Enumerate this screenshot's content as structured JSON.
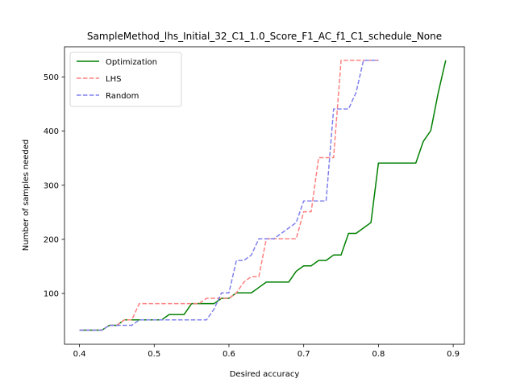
{
  "chart_data": {
    "type": "line",
    "title": "SampleMethod_lhs_Initial_32_C1_1.0_Score_F1_AC_f1_C1_schedule_None",
    "xlabel": "Desired accuracy",
    "ylabel": "Number of samples needed",
    "xlim": [
      0.38,
      0.915
    ],
    "ylim": [
      6,
      556
    ],
    "xticks": [
      0.4,
      0.5,
      0.6,
      0.7,
      0.8,
      0.9
    ],
    "xtick_labels": [
      "0.4",
      "0.5",
      "0.6",
      "0.7",
      "0.8",
      "0.9"
    ],
    "yticks": [
      100,
      200,
      300,
      400,
      500
    ],
    "ytick_labels": [
      "100",
      "200",
      "300",
      "400",
      "500"
    ],
    "grid": false,
    "legend": "top-left",
    "series": [
      {
        "name": "Optimization",
        "color": "#008000",
        "style": "solid",
        "x": [
          0.4,
          0.41,
          0.42,
          0.43,
          0.44,
          0.45,
          0.46,
          0.47,
          0.48,
          0.49,
          0.5,
          0.51,
          0.52,
          0.53,
          0.54,
          0.55,
          0.56,
          0.57,
          0.58,
          0.59,
          0.6,
          0.61,
          0.62,
          0.63,
          0.64,
          0.65,
          0.66,
          0.67,
          0.68,
          0.69,
          0.7,
          0.71,
          0.72,
          0.73,
          0.74,
          0.75,
          0.76,
          0.77,
          0.78,
          0.79,
          0.8,
          0.81,
          0.82,
          0.83,
          0.84,
          0.85,
          0.86,
          0.87,
          0.88,
          0.89
        ],
        "y": [
          32,
          32,
          32,
          32,
          41,
          41,
          51,
          51,
          51,
          51,
          51,
          51,
          61,
          61,
          61,
          81,
          81,
          81,
          81,
          91,
          91,
          101,
          101,
          101,
          111,
          121,
          121,
          121,
          121,
          141,
          151,
          151,
          161,
          161,
          171,
          171,
          211,
          211,
          221,
          231,
          341,
          341,
          341,
          341,
          341,
          341,
          381,
          401,
          471,
          531
        ]
      },
      {
        "name": "LHS",
        "color": "#ff8080",
        "style": "dashed",
        "x": [
          0.4,
          0.41,
          0.42,
          0.43,
          0.44,
          0.45,
          0.46,
          0.47,
          0.48,
          0.49,
          0.5,
          0.51,
          0.52,
          0.53,
          0.54,
          0.55,
          0.56,
          0.57,
          0.58,
          0.59,
          0.6,
          0.61,
          0.62,
          0.63,
          0.64,
          0.65,
          0.66,
          0.67,
          0.68,
          0.69,
          0.7,
          0.71,
          0.72,
          0.73,
          0.74,
          0.75,
          0.76,
          0.77,
          0.78,
          0.79,
          0.8
        ],
        "y": [
          32,
          32,
          32,
          32,
          41,
          41,
          51,
          51,
          81,
          81,
          81,
          81,
          81,
          81,
          81,
          81,
          81,
          91,
          91,
          91,
          91,
          101,
          121,
          131,
          131,
          201,
          201,
          201,
          201,
          201,
          251,
          251,
          351,
          351,
          351,
          531,
          531,
          531,
          531,
          531,
          531
        ]
      },
      {
        "name": "Random",
        "color": "#8080ee",
        "style": "dashed",
        "x": [
          0.4,
          0.41,
          0.42,
          0.43,
          0.44,
          0.45,
          0.46,
          0.47,
          0.48,
          0.49,
          0.5,
          0.51,
          0.52,
          0.53,
          0.54,
          0.55,
          0.56,
          0.57,
          0.58,
          0.59,
          0.6,
          0.61,
          0.62,
          0.63,
          0.64,
          0.65,
          0.66,
          0.67,
          0.68,
          0.69,
          0.7,
          0.71,
          0.72,
          0.73,
          0.74,
          0.75,
          0.76,
          0.77,
          0.78,
          0.79,
          0.8
        ],
        "y": [
          32,
          32,
          32,
          32,
          41,
          41,
          41,
          41,
          51,
          51,
          51,
          51,
          51,
          51,
          51,
          51,
          51,
          51,
          71,
          101,
          101,
          161,
          161,
          171,
          201,
          201,
          201,
          211,
          221,
          231,
          271,
          271,
          271,
          271,
          441,
          441,
          441,
          471,
          531,
          531,
          531
        ]
      }
    ]
  }
}
